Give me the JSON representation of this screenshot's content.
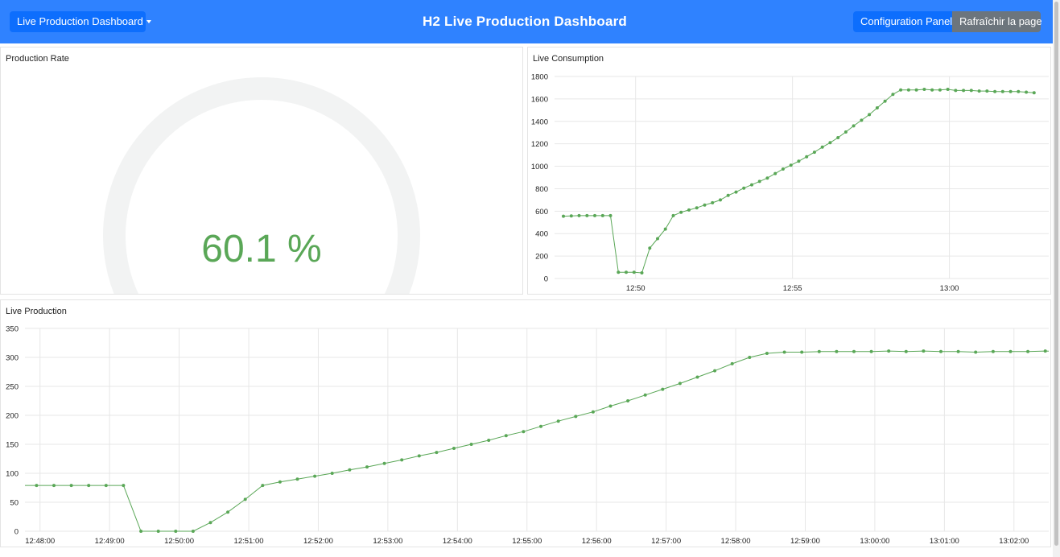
{
  "header": {
    "dropdown_label": "Live Production Dashboard",
    "title": "H2 Live Production Dashboard",
    "config_button": "Configuration Panel",
    "refresh_button": "Rafraîchir la page"
  },
  "panels": {
    "production_rate_title": "Production Rate",
    "live_consumption_title": "Live Consumption",
    "live_production_title": "Live Production"
  },
  "colors": {
    "header_bg": "#2f82ff",
    "button_blue": "#0d6efd",
    "button_grey": "#6c757d",
    "series_green": "#5aa757",
    "gauge_track": "#f2f3f3"
  },
  "chart_data": [
    {
      "type": "gauge",
      "value": 60.1,
      "unit": "%",
      "value_label": "60.1 %",
      "range": [
        0,
        100
      ]
    },
    {
      "type": "line",
      "x_unit": "time",
      "xlim": [
        "12:47:25",
        "13:03:10"
      ],
      "x_ticks": [
        "12:50",
        "12:55",
        "13:00"
      ],
      "ylim": [
        0,
        1800
      ],
      "y_ticks": [
        0,
        200,
        400,
        600,
        800,
        1000,
        1200,
        1400,
        1600,
        1800
      ],
      "grid": true,
      "series": [
        {
          "x": [
            "12:47:42",
            "12:47:57",
            "12:48:12",
            "12:48:27",
            "12:48:42",
            "12:48:57",
            "12:49:12",
            "12:49:27",
            "12:49:42",
            "12:49:57",
            "12:50:12",
            "12:50:27",
            "12:50:42",
            "12:50:57",
            "12:51:12",
            "12:51:27",
            "12:51:42",
            "12:51:57",
            "12:52:12",
            "12:52:27",
            "12:52:42",
            "12:52:57",
            "12:53:12",
            "12:53:27",
            "12:53:42",
            "12:53:57",
            "12:54:12",
            "12:54:27",
            "12:54:42",
            "12:54:57",
            "12:55:12",
            "12:55:27",
            "12:55:42",
            "12:55:57",
            "12:56:12",
            "12:56:27",
            "12:56:42",
            "12:56:57",
            "12:57:12",
            "12:57:27",
            "12:57:42",
            "12:57:57",
            "12:58:12",
            "12:58:27",
            "12:58:42",
            "12:58:57",
            "12:59:12",
            "12:59:27",
            "12:59:42",
            "12:59:57",
            "13:00:12",
            "13:00:27",
            "13:00:42",
            "13:00:57",
            "13:01:12",
            "13:01:27",
            "13:01:42",
            "13:01:57",
            "13:02:12",
            "13:02:27",
            "13:02:42"
          ],
          "values": [
            555,
            558,
            560,
            560,
            560,
            560,
            560,
            55,
            55,
            55,
            50,
            270,
            355,
            440,
            560,
            590,
            610,
            630,
            655,
            675,
            700,
            740,
            770,
            805,
            835,
            865,
            895,
            935,
            975,
            1010,
            1045,
            1085,
            1125,
            1170,
            1210,
            1255,
            1305,
            1360,
            1410,
            1460,
            1520,
            1580,
            1640,
            1680,
            1680,
            1680,
            1685,
            1680,
            1680,
            1685,
            1675,
            1675,
            1675,
            1670,
            1670,
            1665,
            1665,
            1665,
            1665,
            1660,
            1655
          ]
        }
      ]
    },
    {
      "type": "line",
      "x_unit": "time",
      "xlim": [
        "12:47:47",
        "13:02:30"
      ],
      "x_ticks": [
        "12:48:00",
        "12:49:00",
        "12:50:00",
        "12:51:00",
        "12:52:00",
        "12:53:00",
        "12:54:00",
        "12:55:00",
        "12:56:00",
        "12:57:00",
        "12:58:00",
        "12:59:00",
        "13:00:00",
        "13:01:00",
        "13:02:00"
      ],
      "ylim": [
        0,
        350
      ],
      "y_ticks": [
        0,
        50,
        100,
        150,
        200,
        250,
        300,
        350
      ],
      "grid": true,
      "series": [
        {
          "x": [
            "12:47:42",
            "12:47:57",
            "12:48:12",
            "12:48:27",
            "12:48:42",
            "12:48:57",
            "12:49:12",
            "12:49:27",
            "12:49:42",
            "12:49:57",
            "12:50:12",
            "12:50:27",
            "12:50:42",
            "12:50:57",
            "12:51:12",
            "12:51:27",
            "12:51:42",
            "12:51:57",
            "12:52:12",
            "12:52:27",
            "12:52:42",
            "12:52:57",
            "12:53:12",
            "12:53:27",
            "12:53:42",
            "12:53:57",
            "12:54:12",
            "12:54:27",
            "12:54:42",
            "12:54:57",
            "12:55:12",
            "12:55:27",
            "12:55:42",
            "12:55:57",
            "12:56:12",
            "12:56:27",
            "12:56:42",
            "12:56:57",
            "12:57:12",
            "12:57:27",
            "12:57:42",
            "12:57:57",
            "12:58:12",
            "12:58:27",
            "12:58:42",
            "12:58:57",
            "12:59:12",
            "12:59:27",
            "12:59:42",
            "12:59:57",
            "13:00:12",
            "13:00:27",
            "13:00:42",
            "13:00:57",
            "13:01:12",
            "13:01:27",
            "13:01:42",
            "13:01:57",
            "13:02:12",
            "13:02:27",
            "13:02:42"
          ],
          "values": [
            79,
            79,
            79,
            79,
            79,
            79,
            79,
            0,
            0,
            0,
            0,
            15,
            33,
            55,
            79,
            85,
            90,
            95,
            100,
            106,
            111,
            117,
            123,
            130,
            136,
            143,
            150,
            157,
            165,
            172,
            181,
            190,
            198,
            206,
            216,
            225,
            235,
            245,
            255,
            266,
            277,
            289,
            300,
            307,
            309,
            309,
            310,
            310,
            310,
            310,
            311,
            310,
            311,
            310,
            310,
            309,
            310,
            310,
            310,
            311,
            310
          ]
        }
      ]
    }
  ]
}
